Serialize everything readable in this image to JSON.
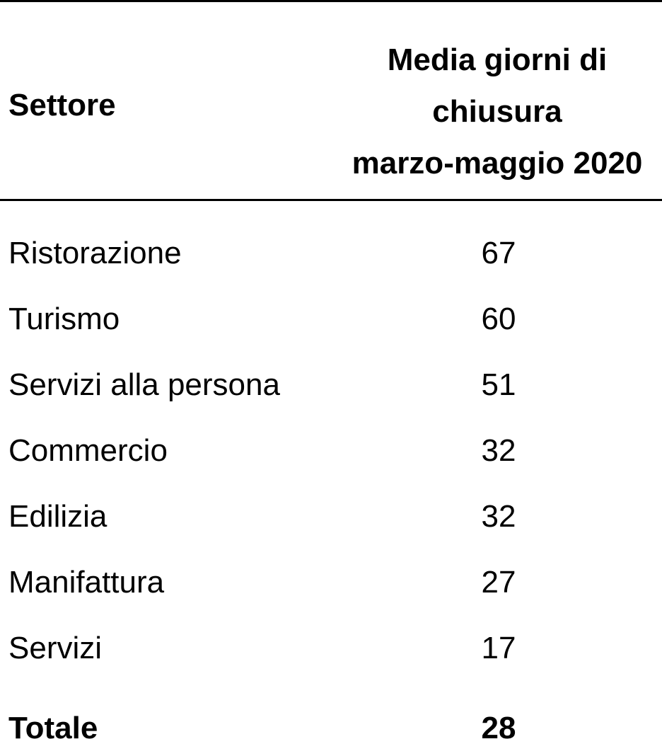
{
  "chart_data": {
    "type": "table",
    "columns": [
      "Settore",
      "Media giorni di chiusura marzo-maggio 2020"
    ],
    "header": {
      "sector": "Settore",
      "value_lines": [
        "Media giorni di",
        "chiusura",
        "marzo-maggio 2020"
      ]
    },
    "rows": [
      {
        "sector": "Ristorazione",
        "value": "67"
      },
      {
        "sector": "Turismo",
        "value": "60"
      },
      {
        "sector": "Servizi alla persona",
        "value": "51"
      },
      {
        "sector": "Commercio",
        "value": "32"
      },
      {
        "sector": "Edilizia",
        "value": "32"
      },
      {
        "sector": "Manifattura",
        "value": "27"
      },
      {
        "sector": "Servizi",
        "value": "17"
      }
    ],
    "total": {
      "sector": "Totale",
      "value": "28"
    }
  }
}
